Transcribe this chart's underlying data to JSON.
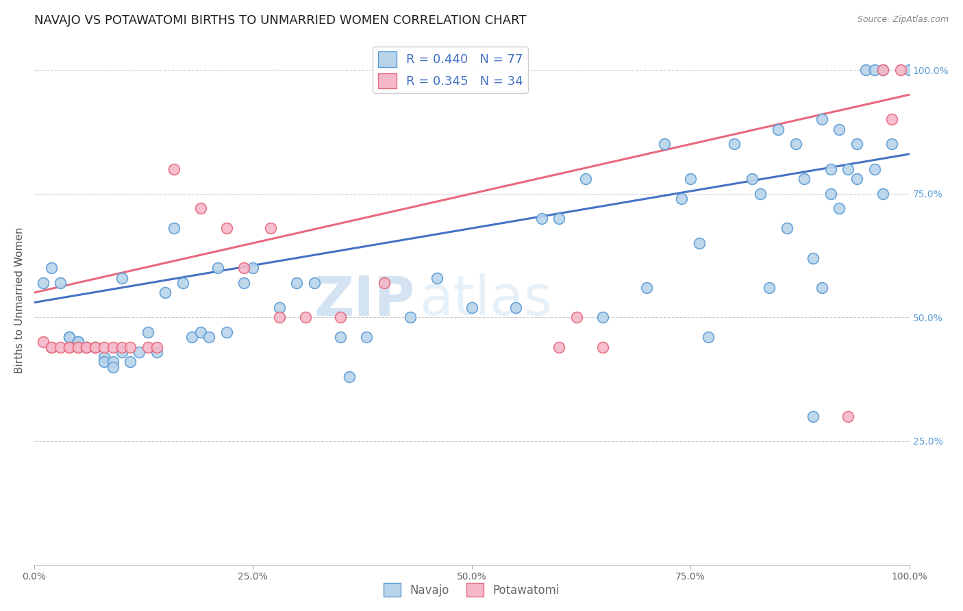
{
  "title": "NAVAJO VS POTAWATOMI BIRTHS TO UNMARRIED WOMEN CORRELATION CHART",
  "source": "Source: ZipAtlas.com",
  "ylabel": "Births to Unmarried Women",
  "navajo_R": 0.44,
  "navajo_N": 77,
  "potawatomi_R": 0.345,
  "potawatomi_N": 34,
  "navajo_color": "#b8d4ea",
  "navajo_edge_color": "#5b9bd5",
  "potawatomi_color": "#f4b8c8",
  "potawatomi_edge_color": "#e8687c",
  "navajo_line_color": "#4472c4",
  "potawatomi_line_color": "#e8687c",
  "background_color": "#ffffff",
  "legend_label_navajo": "Navajo",
  "legend_label_potawatomi": "Potawatomi",
  "watermark_zip": "ZIP",
  "watermark_atlas": "atlas",
  "title_fontsize": 13,
  "axis_label_fontsize": 11,
  "tick_fontsize": 10,
  "navajo_x": [
    0.01,
    0.02,
    0.03,
    0.04,
    0.04,
    0.05,
    0.05,
    0.06,
    0.06,
    0.07,
    0.07,
    0.08,
    0.08,
    0.09,
    0.09,
    0.1,
    0.1,
    0.11,
    0.12,
    0.13,
    0.14,
    0.15,
    0.16,
    0.17,
    0.18,
    0.19,
    0.2,
    0.21,
    0.22,
    0.24,
    0.25,
    0.28,
    0.3,
    0.32,
    0.35,
    0.36,
    0.38,
    0.43,
    0.46,
    0.5,
    0.55,
    0.58,
    0.6,
    0.63,
    0.65,
    0.7,
    0.72,
    0.74,
    0.75,
    0.76,
    0.77,
    0.8,
    0.82,
    0.83,
    0.84,
    0.85,
    0.86,
    0.87,
    0.88,
    0.89,
    0.89,
    0.9,
    0.9,
    0.91,
    0.91,
    0.92,
    0.92,
    0.93,
    0.94,
    0.94,
    0.95,
    0.96,
    0.96,
    0.97,
    0.97,
    0.98,
    1.0
  ],
  "navajo_y": [
    0.57,
    0.6,
    0.57,
    0.46,
    0.46,
    0.45,
    0.45,
    0.44,
    0.44,
    0.44,
    0.44,
    0.42,
    0.41,
    0.41,
    0.4,
    0.58,
    0.43,
    0.41,
    0.43,
    0.47,
    0.43,
    0.55,
    0.68,
    0.57,
    0.46,
    0.47,
    0.46,
    0.6,
    0.47,
    0.57,
    0.6,
    0.52,
    0.57,
    0.57,
    0.46,
    0.38,
    0.46,
    0.5,
    0.58,
    0.52,
    0.52,
    0.7,
    0.7,
    0.78,
    0.5,
    0.56,
    0.85,
    0.74,
    0.78,
    0.65,
    0.46,
    0.85,
    0.78,
    0.75,
    0.56,
    0.88,
    0.68,
    0.85,
    0.78,
    0.62,
    0.3,
    0.9,
    0.56,
    0.8,
    0.75,
    0.88,
    0.72,
    0.8,
    0.78,
    0.85,
    1.0,
    0.8,
    1.0,
    1.0,
    0.75,
    0.85,
    1.0
  ],
  "potawatomi_x": [
    0.01,
    0.02,
    0.02,
    0.03,
    0.04,
    0.04,
    0.05,
    0.05,
    0.06,
    0.06,
    0.07,
    0.07,
    0.08,
    0.09,
    0.1,
    0.11,
    0.13,
    0.14,
    0.16,
    0.19,
    0.22,
    0.24,
    0.27,
    0.28,
    0.31,
    0.35,
    0.4,
    0.6,
    0.62,
    0.65,
    0.93,
    0.97,
    0.98,
    0.99
  ],
  "potawatomi_y": [
    0.45,
    0.44,
    0.44,
    0.44,
    0.44,
    0.44,
    0.44,
    0.44,
    0.44,
    0.44,
    0.44,
    0.44,
    0.44,
    0.44,
    0.44,
    0.44,
    0.44,
    0.44,
    0.8,
    0.72,
    0.68,
    0.6,
    0.68,
    0.5,
    0.5,
    0.5,
    0.57,
    0.44,
    0.5,
    0.44,
    0.3,
    1.0,
    0.9,
    1.0
  ],
  "navajo_trend_x": [
    0.0,
    1.0
  ],
  "navajo_trend_y": [
    0.53,
    0.83
  ],
  "potawatomi_trend_x": [
    0.0,
    1.0
  ],
  "potawatomi_trend_y": [
    0.55,
    0.95
  ],
  "grid_color": "#cccccc",
  "right_tick_color": "#5b9bd5",
  "xlim": [
    0.0,
    1.0
  ],
  "ylim": [
    0.0,
    1.07
  ]
}
